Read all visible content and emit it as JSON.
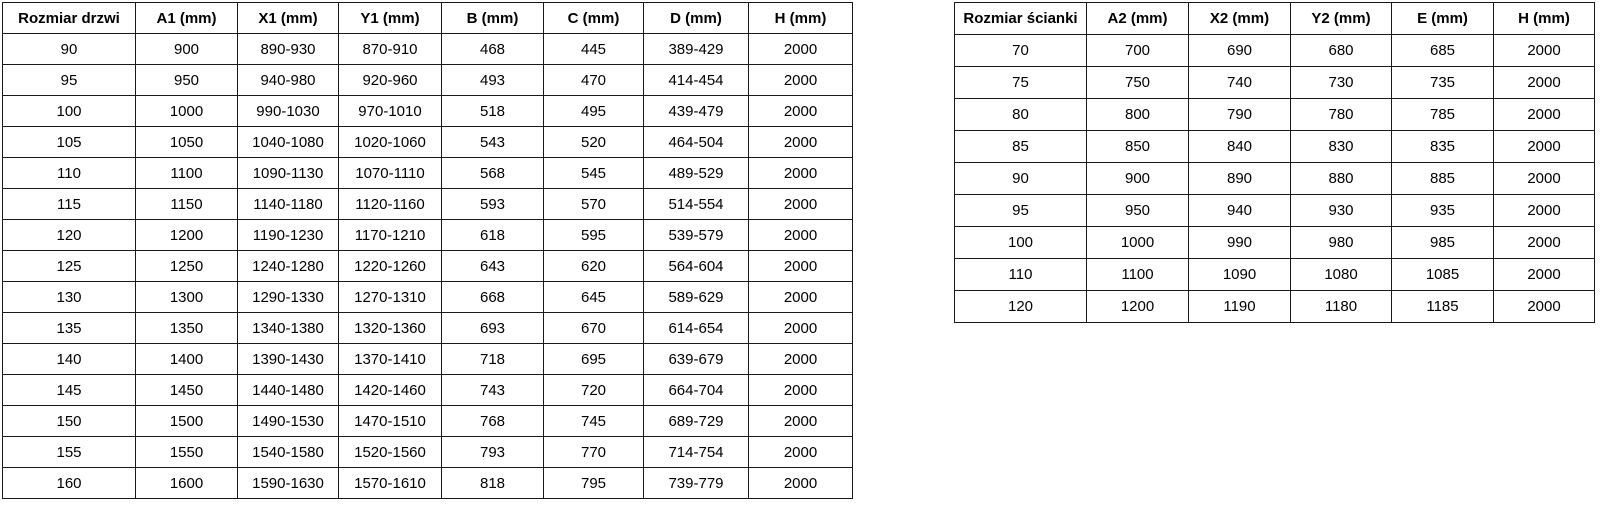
{
  "door_table": {
    "name": "Rozmiar drzwi",
    "headers": [
      "Rozmiar drzwi",
      "A1 (mm)",
      "X1 (mm)",
      "Y1 (mm)",
      "B (mm)",
      "C (mm)",
      "D (mm)",
      "H (mm)"
    ],
    "rows": [
      [
        "90",
        "900",
        "890-930",
        "870-910",
        "468",
        "445",
        "389-429",
        "2000"
      ],
      [
        "95",
        "950",
        "940-980",
        "920-960",
        "493",
        "470",
        "414-454",
        "2000"
      ],
      [
        "100",
        "1000",
        "990-1030",
        "970-1010",
        "518",
        "495",
        "439-479",
        "2000"
      ],
      [
        "105",
        "1050",
        "1040-1080",
        "1020-1060",
        "543",
        "520",
        "464-504",
        "2000"
      ],
      [
        "110",
        "1100",
        "1090-1130",
        "1070-1110",
        "568",
        "545",
        "489-529",
        "2000"
      ],
      [
        "115",
        "1150",
        "1140-1180",
        "1120-1160",
        "593",
        "570",
        "514-554",
        "2000"
      ],
      [
        "120",
        "1200",
        "1190-1230",
        "1170-1210",
        "618",
        "595",
        "539-579",
        "2000"
      ],
      [
        "125",
        "1250",
        "1240-1280",
        "1220-1260",
        "643",
        "620",
        "564-604",
        "2000"
      ],
      [
        "130",
        "1300",
        "1290-1330",
        "1270-1310",
        "668",
        "645",
        "589-629",
        "2000"
      ],
      [
        "135",
        "1350",
        "1340-1380",
        "1320-1360",
        "693",
        "670",
        "614-654",
        "2000"
      ],
      [
        "140",
        "1400",
        "1390-1430",
        "1370-1410",
        "718",
        "695",
        "639-679",
        "2000"
      ],
      [
        "145",
        "1450",
        "1440-1480",
        "1420-1460",
        "743",
        "720",
        "664-704",
        "2000"
      ],
      [
        "150",
        "1500",
        "1490-1530",
        "1470-1510",
        "768",
        "745",
        "689-729",
        "2000"
      ],
      [
        "155",
        "1550",
        "1540-1580",
        "1520-1560",
        "793",
        "770",
        "714-754",
        "2000"
      ],
      [
        "160",
        "1600",
        "1590-1630",
        "1570-1610",
        "818",
        "795",
        "739-779",
        "2000"
      ]
    ]
  },
  "wall_table": {
    "name": "Rozmiar ścianki",
    "headers": [
      "Rozmiar ścianki",
      "A2 (mm)",
      "X2 (mm)",
      "Y2 (mm)",
      "E (mm)",
      "H (mm)"
    ],
    "rows": [
      [
        "70",
        "700",
        "690",
        "680",
        "685",
        "2000"
      ],
      [
        "75",
        "750",
        "740",
        "730",
        "735",
        "2000"
      ],
      [
        "80",
        "800",
        "790",
        "780",
        "785",
        "2000"
      ],
      [
        "85",
        "850",
        "840",
        "830",
        "835",
        "2000"
      ],
      [
        "90",
        "900",
        "890",
        "880",
        "885",
        "2000"
      ],
      [
        "95",
        "950",
        "940",
        "930",
        "935",
        "2000"
      ],
      [
        "100",
        "1000",
        "990",
        "980",
        "985",
        "2000"
      ],
      [
        "110",
        "1100",
        "1090",
        "1080",
        "1085",
        "2000"
      ],
      [
        "120",
        "1200",
        "1190",
        "1180",
        "1185",
        "2000"
      ]
    ]
  },
  "colors": {
    "border": "#1a1a1a",
    "background": "#ffffff",
    "text": "#000000"
  }
}
